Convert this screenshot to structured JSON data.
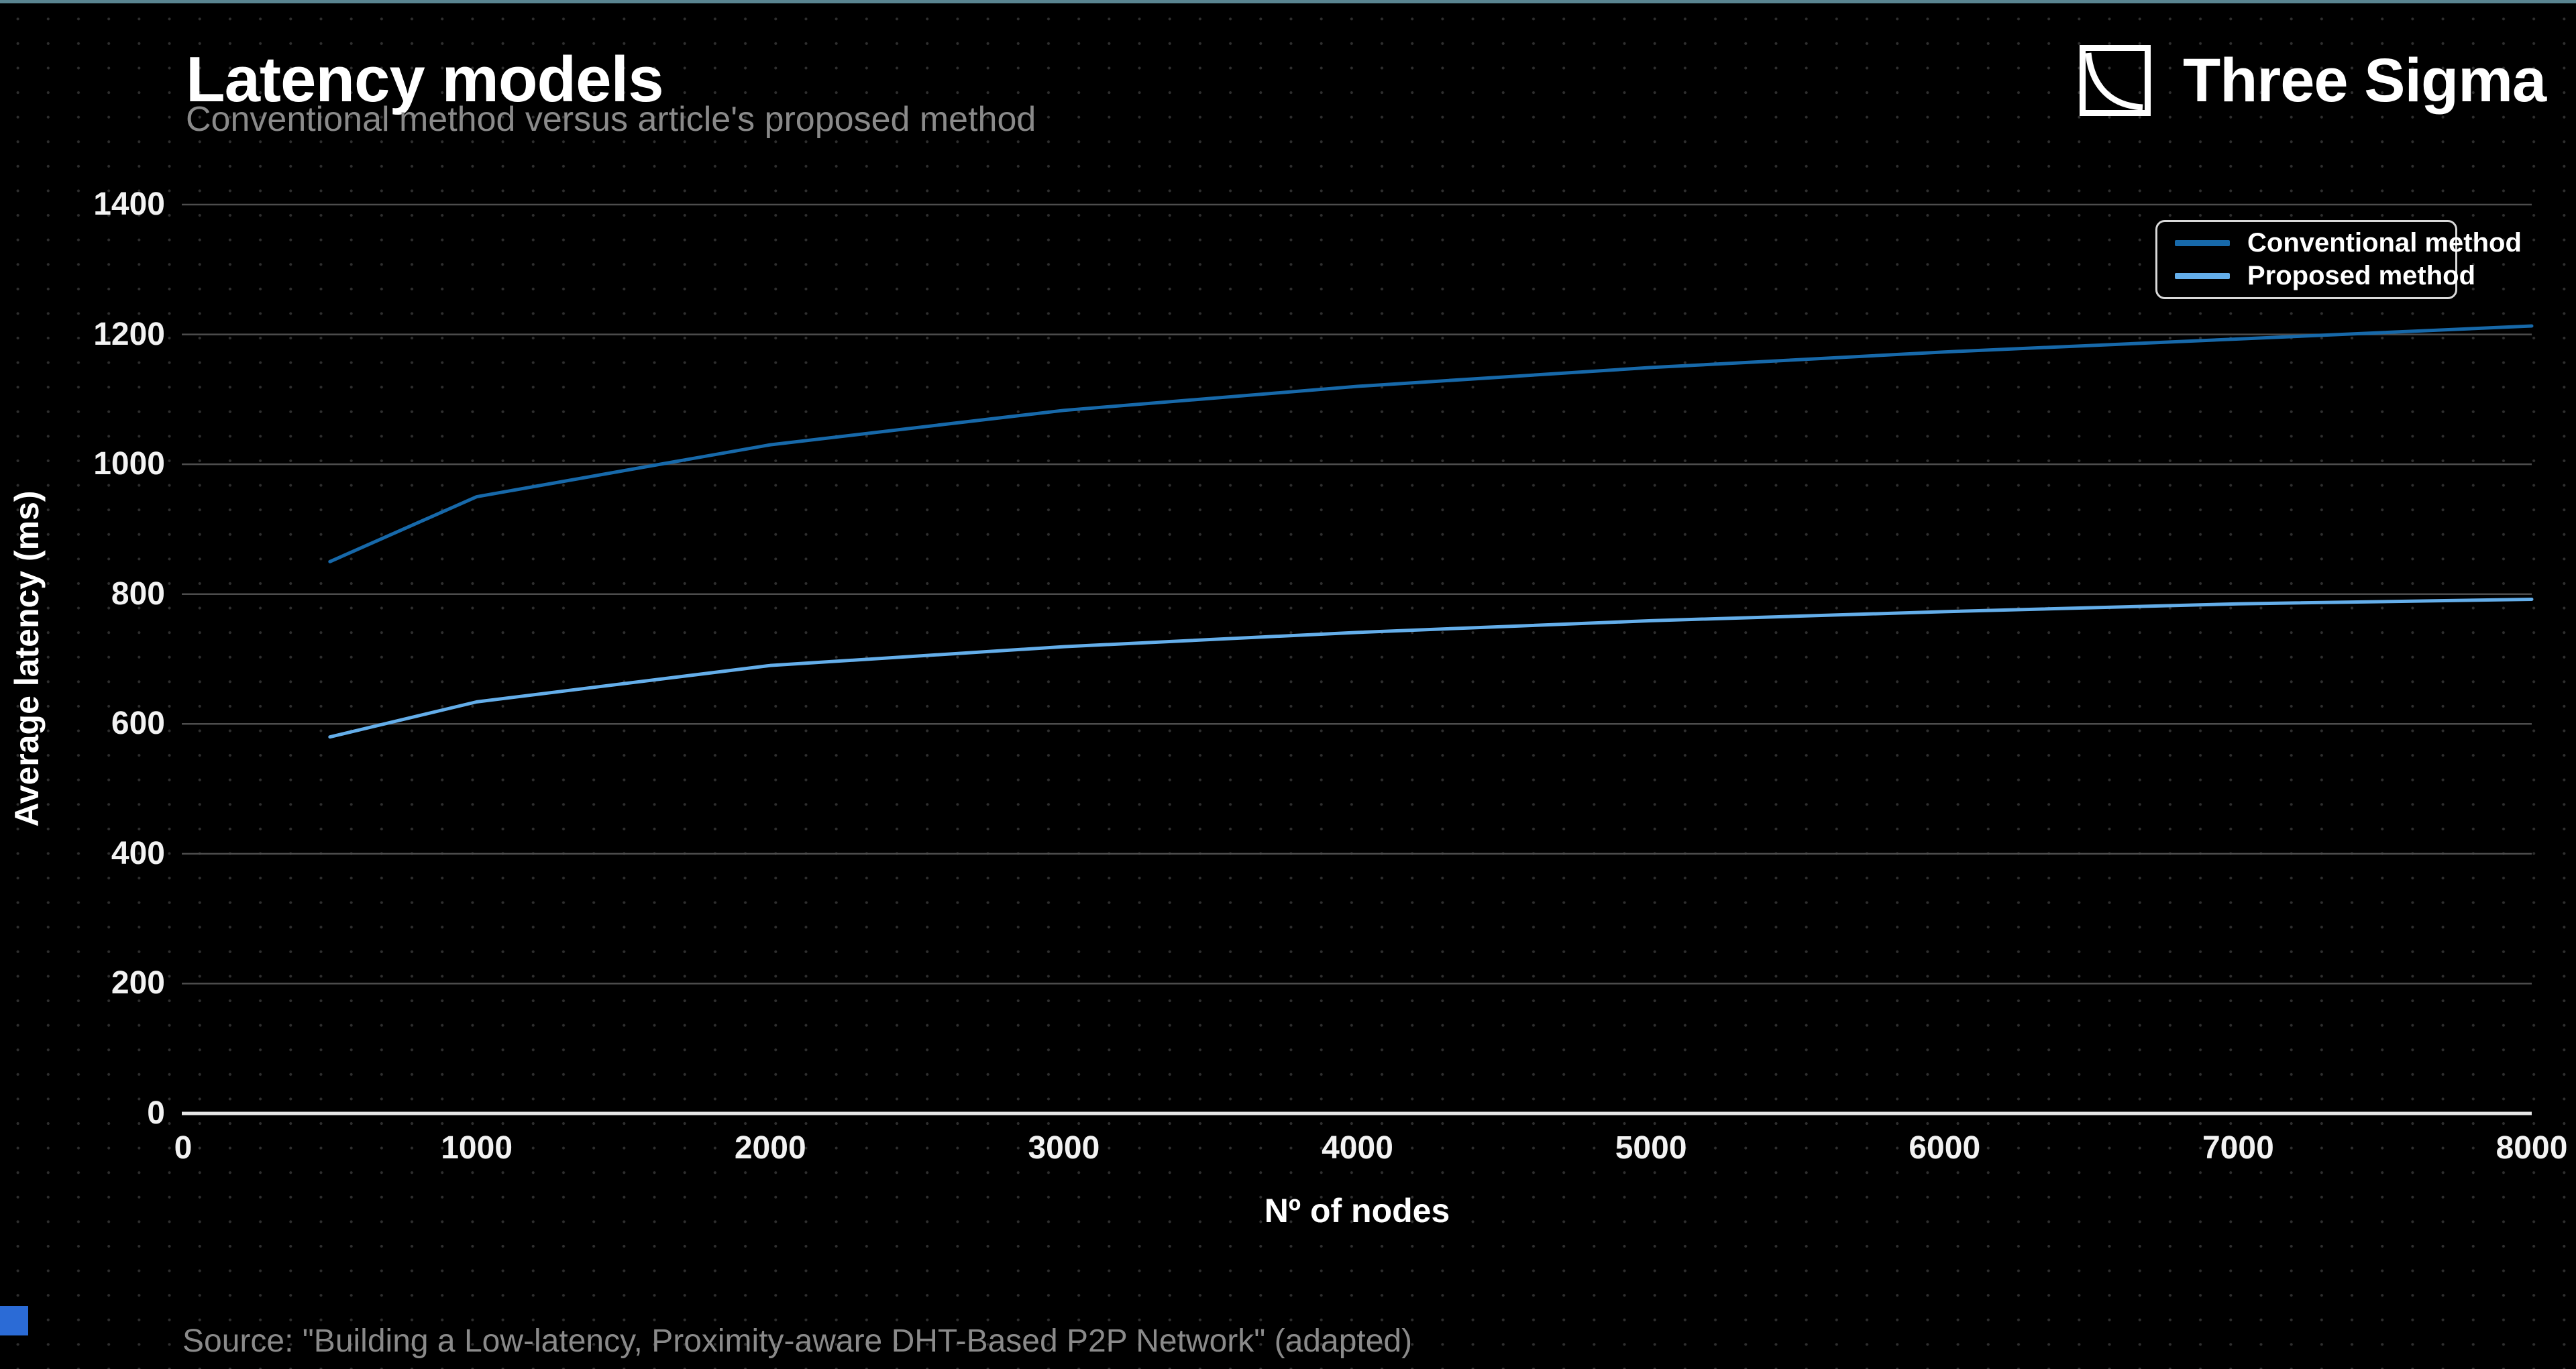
{
  "page": {
    "title": "Latency models",
    "subtitle": "Conventional method versus article's proposed method",
    "source": "Source: \"Building a Low-latency, Proximity-aware DHT-Based P2P Network\" (adapted)",
    "top_strip_color": "#5a8591",
    "background_color": "#000000"
  },
  "brand": {
    "name": "Three Sigma",
    "icon": "decay-curve-logo"
  },
  "corner_mark_color": "#2b6bd6",
  "chart_data": {
    "type": "line",
    "title": "Latency models",
    "subtitle": "Conventional method versus article's proposed method",
    "xlabel": "Nº of nodes",
    "ylabel": "Average latency (ms)",
    "xlim": [
      0,
      8000
    ],
    "ylim": [
      0,
      1400
    ],
    "xticks": [
      0,
      1000,
      2000,
      3000,
      4000,
      5000,
      6000,
      7000,
      8000
    ],
    "yticks": [
      0,
      200,
      400,
      600,
      800,
      1000,
      1200,
      1400
    ],
    "grid": "horizontal",
    "grid_color": "#4d4d4d",
    "axis_line_color": "#e8e8e8",
    "tick_color": "#f2f2f2",
    "legend_position": "upper right",
    "x": [
      500,
      1000,
      2000,
      3000,
      4000,
      5000,
      6000,
      7000,
      8000
    ],
    "series": [
      {
        "name": "Conventional method",
        "color": "#1769aa",
        "values": [
          850,
          950,
          1030,
          1083,
          1120,
          1149,
          1173,
          1193,
          1213
        ]
      },
      {
        "name": "Proposed method",
        "color": "#64aeea",
        "values": [
          580,
          634,
          690,
          719,
          741,
          759,
          773,
          785,
          792
        ]
      }
    ]
  }
}
